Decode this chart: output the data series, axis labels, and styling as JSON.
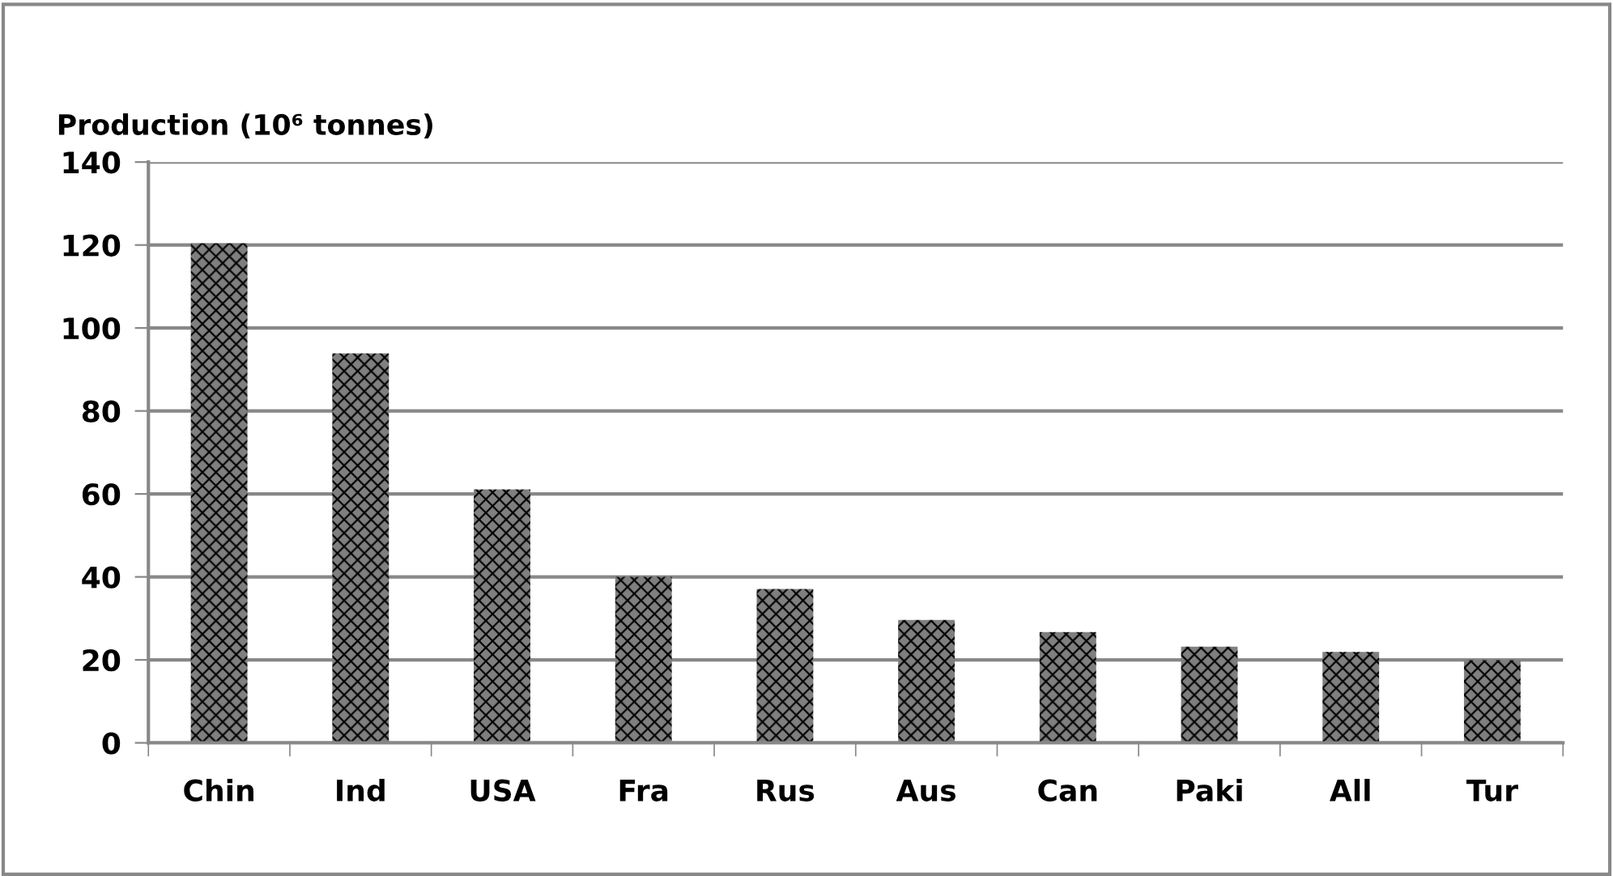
{
  "chart_data": {
    "type": "bar",
    "title": "Production (10⁶ tonnes)",
    "categories": [
      "Chin",
      "Ind",
      "USA",
      "Fra",
      "Rus",
      "Aus",
      "Can",
      "Paki",
      "All",
      "Tur"
    ],
    "values": [
      120.4,
      93.9,
      61.1,
      40.0,
      37.1,
      29.6,
      26.7,
      23.2,
      21.9,
      19.9
    ],
    "color": "#7f7f7f",
    "ylim": [
      0,
      140
    ],
    "yticks": [
      0,
      20,
      40,
      60,
      80,
      100,
      120,
      140
    ],
    "grid": "y"
  }
}
